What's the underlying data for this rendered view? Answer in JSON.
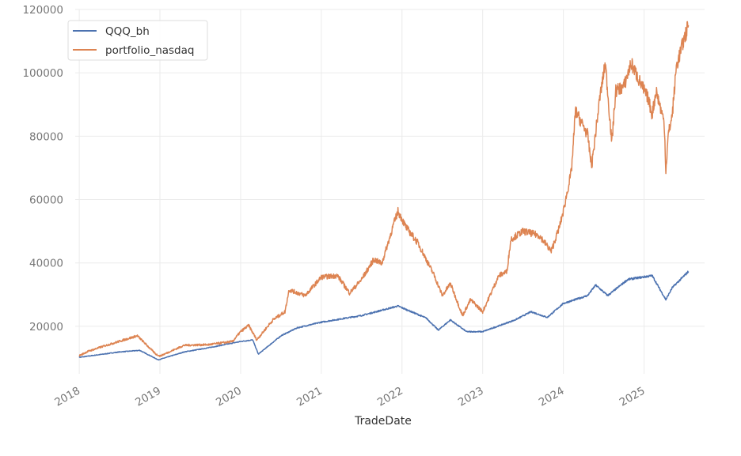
{
  "chart_data": {
    "type": "line",
    "title": "",
    "xlabel": "TradeDate",
    "ylabel": "",
    "xlim": [
      2017.95,
      2025.75
    ],
    "ylim": [
      5000,
      120000
    ],
    "grid": true,
    "legend_position": "top-left",
    "x_ticks": [
      "2018",
      "2019",
      "2020",
      "2021",
      "2022",
      "2023",
      "2024",
      "2025"
    ],
    "y_ticks": [
      "20000",
      "40000",
      "60000",
      "80000",
      "100000",
      "120000"
    ],
    "series": [
      {
        "name": "QQQ_bh",
        "color": "#4c72b0",
        "points": [
          [
            2018.0,
            10200
          ],
          [
            2018.5,
            11900
          ],
          [
            2018.75,
            12400
          ],
          [
            2018.98,
            9400
          ],
          [
            2019.3,
            11900
          ],
          [
            2019.6,
            13200
          ],
          [
            2020.0,
            15200
          ],
          [
            2020.15,
            15700
          ],
          [
            2020.22,
            11200
          ],
          [
            2020.5,
            17000
          ],
          [
            2020.7,
            19500
          ],
          [
            2021.0,
            21300
          ],
          [
            2021.5,
            23400
          ],
          [
            2021.95,
            26400
          ],
          [
            2022.3,
            22600
          ],
          [
            2022.45,
            18800
          ],
          [
            2022.6,
            22000
          ],
          [
            2022.8,
            18300
          ],
          [
            2023.0,
            18300
          ],
          [
            2023.4,
            22000
          ],
          [
            2023.6,
            24600
          ],
          [
            2023.8,
            22800
          ],
          [
            2024.0,
            27200
          ],
          [
            2024.3,
            29700
          ],
          [
            2024.4,
            33000
          ],
          [
            2024.55,
            29700
          ],
          [
            2024.8,
            34800
          ],
          [
            2025.1,
            36000
          ],
          [
            2025.27,
            28400
          ],
          [
            2025.35,
            32200
          ],
          [
            2025.55,
            37300
          ]
        ]
      },
      {
        "name": "portfolio_nasdaq",
        "color": "#dd8452",
        "points": [
          [
            2018.0,
            10700
          ],
          [
            2018.1,
            12000
          ],
          [
            2018.3,
            13700
          ],
          [
            2018.72,
            17000
          ],
          [
            2018.95,
            11200
          ],
          [
            2019.0,
            10600
          ],
          [
            2019.3,
            14000
          ],
          [
            2019.6,
            14200
          ],
          [
            2019.9,
            15200
          ],
          [
            2020.0,
            18300
          ],
          [
            2020.1,
            20300
          ],
          [
            2020.2,
            15700
          ],
          [
            2020.4,
            22000
          ],
          [
            2020.55,
            24600
          ],
          [
            2020.6,
            31500
          ],
          [
            2020.8,
            29700
          ],
          [
            2021.0,
            35500
          ],
          [
            2021.2,
            36000
          ],
          [
            2021.35,
            30500
          ],
          [
            2021.5,
            34800
          ],
          [
            2021.65,
            41100
          ],
          [
            2021.75,
            39800
          ],
          [
            2021.9,
            52500
          ],
          [
            2021.95,
            56300
          ],
          [
            2022.05,
            51300
          ],
          [
            2022.2,
            46200
          ],
          [
            2022.4,
            36000
          ],
          [
            2022.5,
            29700
          ],
          [
            2022.6,
            33500
          ],
          [
            2022.75,
            23400
          ],
          [
            2022.85,
            28400
          ],
          [
            2023.0,
            24600
          ],
          [
            2023.2,
            36000
          ],
          [
            2023.3,
            37300
          ],
          [
            2023.35,
            47500
          ],
          [
            2023.5,
            50000
          ],
          [
            2023.7,
            48700
          ],
          [
            2023.85,
            43700
          ],
          [
            2023.95,
            51300
          ],
          [
            2024.0,
            56300
          ],
          [
            2024.1,
            69000
          ],
          [
            2024.15,
            88000
          ],
          [
            2024.3,
            80500
          ],
          [
            2024.35,
            70300
          ],
          [
            2024.45,
            91900
          ],
          [
            2024.52,
            103000
          ],
          [
            2024.6,
            78000
          ],
          [
            2024.65,
            94400
          ],
          [
            2024.75,
            95700
          ],
          [
            2024.84,
            103000
          ],
          [
            2024.95,
            97000
          ],
          [
            2025.05,
            91900
          ],
          [
            2025.1,
            86800
          ],
          [
            2025.15,
            94400
          ],
          [
            2025.2,
            89300
          ],
          [
            2025.25,
            84300
          ],
          [
            2025.27,
            69000
          ],
          [
            2025.3,
            80500
          ],
          [
            2025.35,
            86800
          ],
          [
            2025.4,
            102000
          ],
          [
            2025.5,
            111000
          ],
          [
            2025.55,
            115000
          ]
        ]
      }
    ]
  }
}
